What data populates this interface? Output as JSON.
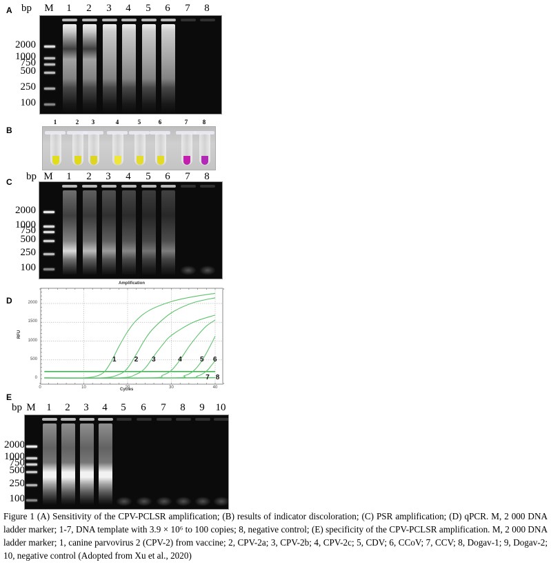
{
  "figure": {
    "panels": {
      "A": {
        "letter": "A",
        "bp_header": "bp",
        "marker_label": "M",
        "lanes": [
          "1",
          "2",
          "3",
          "4",
          "5",
          "6",
          "7",
          "8"
        ],
        "ladder": [
          "2000",
          "1000",
          "750",
          "500",
          "250",
          "100"
        ]
      },
      "B": {
        "letter": "B",
        "tubes": [
          {
            "label": "1",
            "color": "#e2dc1e"
          },
          {
            "label": "2",
            "color": "#e0d81c"
          },
          {
            "label": "3",
            "color": "#ddd520"
          },
          {
            "label": "4",
            "color": "#eee63a"
          },
          {
            "label": "5",
            "color": "#e4dc2a"
          },
          {
            "label": "6",
            "color": "#e3da26"
          },
          {
            "label": "7",
            "color": "#c21fae"
          },
          {
            "label": "8",
            "color": "#b02ab6"
          }
        ]
      },
      "C": {
        "letter": "C",
        "bp_header": "bp",
        "marker_label": "M",
        "lanes": [
          "1",
          "2",
          "3",
          "4",
          "5",
          "6",
          "7",
          "8"
        ],
        "ladder": [
          "2000",
          "1000",
          "750",
          "500",
          "250",
          "100"
        ]
      },
      "D": {
        "letter": "D"
      },
      "E": {
        "letter": "E",
        "bp_header": "bp",
        "marker_label": "M",
        "lanes": [
          "1",
          "2",
          "3",
          "4",
          "5",
          "6",
          "7",
          "8",
          "9",
          "10"
        ],
        "ladder": [
          "2000",
          "1000",
          "750",
          "500",
          "250",
          "100"
        ]
      }
    },
    "caption": "Figure 1 (A) Sensitivity of the CPV-PCLSR amplification; (B) results of indicator discoloration; (C) PSR amplification; (D) qPCR. M, 2 000 DNA ladder marker; 1-7, DNA template with 3.9 × 10⁶ to 100 copies; 8, negative control; (E) specificity of the CPV-PCLSR amplification. M, 2 000 DNA ladder marker; 1, canine parvovirus 2 (CPV-2) from vaccine; 2, CPV-2a; 3, CPV-2b; 4, CPV-2c; 5, CDV; 6, CCoV; 7, CCV; 8, Dogav-1; 9, Dogav-2; 10, negative control (Adopted from Xu et al., 2020)"
  },
  "chart_data": {
    "type": "line",
    "title": "Amplification",
    "xlabel": "Cycles",
    "ylabel": "RFU",
    "xlim": [
      0,
      42
    ],
    "ylim": [
      -50,
      2400
    ],
    "xticks": [
      0,
      10,
      20,
      30,
      40
    ],
    "yticks": [
      0,
      500,
      1000,
      1500,
      2000
    ],
    "grid": true,
    "line_color": "#5cc26b",
    "threshold": 190,
    "series": [
      {
        "name": "1",
        "ct": 15.5,
        "x": [
          1,
          10,
          14,
          16,
          18,
          20,
          22,
          25,
          30,
          35,
          40
        ],
        "values": [
          20,
          20,
          120,
          400,
          850,
          1250,
          1550,
          1820,
          2050,
          2180,
          2270
        ]
      },
      {
        "name": "2",
        "ct": 19.5,
        "x": [
          1,
          14,
          18,
          20,
          22,
          24,
          26,
          30,
          35,
          40
        ],
        "values": [
          20,
          20,
          110,
          280,
          650,
          1050,
          1350,
          1750,
          2020,
          2150
        ]
      },
      {
        "name": "3",
        "ct": 23.5,
        "x": [
          1,
          18,
          22,
          24,
          26,
          28,
          30,
          35,
          40
        ],
        "values": [
          20,
          20,
          120,
          280,
          600,
          900,
          1150,
          1500,
          1690
        ]
      },
      {
        "name": "4",
        "ct": 30,
        "x": [
          1,
          25,
          28,
          30,
          32,
          34,
          36,
          38,
          40
        ],
        "values": [
          20,
          20,
          90,
          220,
          500,
          850,
          1150,
          1400,
          1560
        ]
      },
      {
        "name": "5",
        "ct": 35,
        "x": [
          1,
          30,
          33,
          35,
          37,
          39,
          40
        ],
        "values": [
          20,
          20,
          80,
          200,
          480,
          900,
          1130
        ]
      },
      {
        "name": "6",
        "ct": 38,
        "x": [
          1,
          32,
          36,
          38,
          39,
          40
        ],
        "values": [
          20,
          20,
          70,
          200,
          330,
          480
        ]
      },
      {
        "name": "7",
        "ct": null,
        "x": [
          1,
          30,
          35,
          40
        ],
        "values": [
          20,
          20,
          25,
          30
        ]
      },
      {
        "name": "8",
        "ct": null,
        "x": [
          1,
          30,
          35,
          40
        ],
        "values": [
          15,
          15,
          18,
          22
        ]
      }
    ],
    "curve_labels": [
      {
        "text": "1",
        "x": 17,
        "y": 500
      },
      {
        "text": "2",
        "x": 22,
        "y": 500
      },
      {
        "text": "3",
        "x": 26,
        "y": 500
      },
      {
        "text": "4",
        "x": 32,
        "y": 500
      },
      {
        "text": "5",
        "x": 37,
        "y": 500
      },
      {
        "text": "6",
        "x": 40,
        "y": 500
      },
      {
        "text": "7",
        "x": 38.3,
        "y": 15
      },
      {
        "text": "8",
        "x": 40.6,
        "y": 15
      }
    ]
  }
}
